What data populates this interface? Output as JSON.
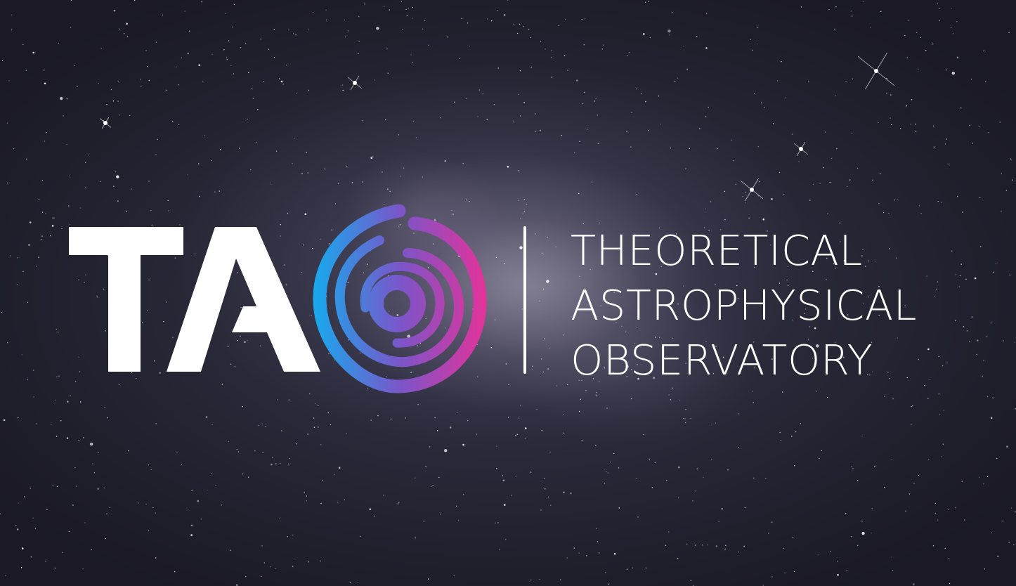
{
  "logo": {
    "wordmark": "TAO",
    "icon": "spiral-galaxy-icon",
    "gradient_start": "#1aa7ec",
    "gradient_mid": "#7b55c9",
    "gradient_end": "#e2339a"
  },
  "tagline": {
    "line1": "THEORETICAL",
    "line2": "ASTROPHYSICAL",
    "line3": "OBSERVATORY"
  },
  "background": {
    "icon": "starfield-icon"
  }
}
